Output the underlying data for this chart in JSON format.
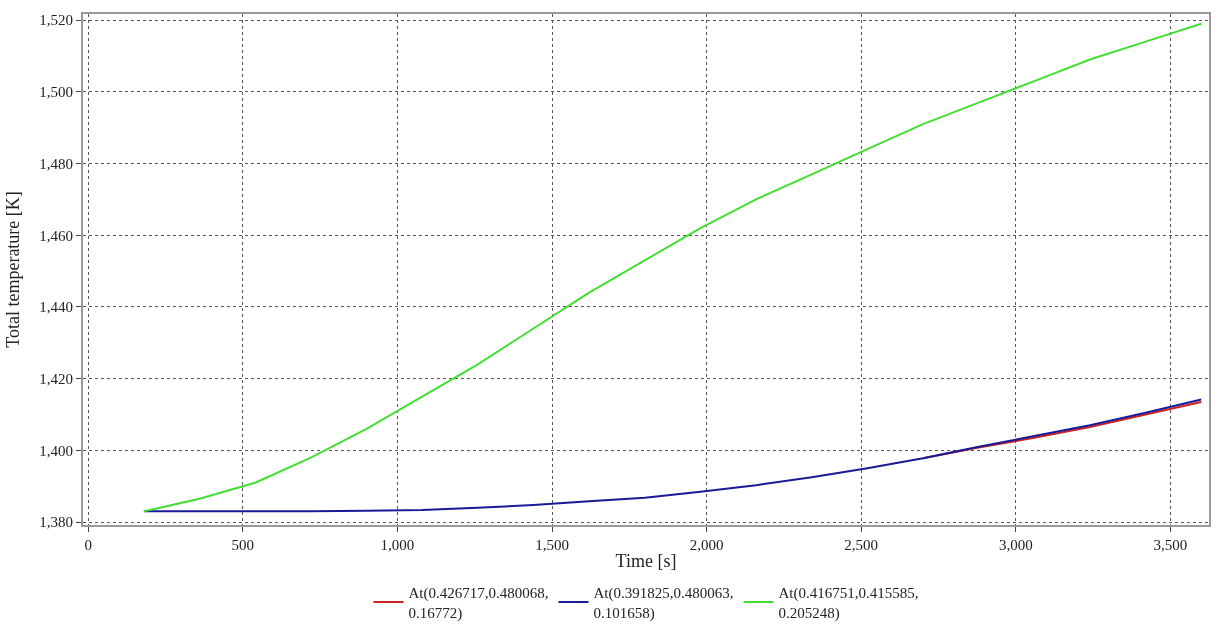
{
  "chart_data": {
    "type": "line",
    "xlabel": "Time [s]",
    "ylabel": "Total temperature [K]",
    "x": [
      180,
      360,
      540,
      720,
      900,
      1080,
      1260,
      1440,
      1620,
      1800,
      1980,
      2160,
      2340,
      2520,
      2700,
      2880,
      3060,
      3240,
      3420,
      3600
    ],
    "series": [
      {
        "name": "At(0.426717,0.480068, 0.16772)",
        "color": "#cc2222",
        "values": [
          null,
          null,
          null,
          null,
          null,
          null,
          null,
          null,
          null,
          null,
          null,
          null,
          null,
          null,
          1397.8,
          1400.8,
          1403.5,
          1406.5,
          1410,
          1413.5
        ]
      },
      {
        "name": "At(0.391825,0.480063, 0.101658)",
        "color": "#1a1a99",
        "values": [
          1383,
          1383,
          1383,
          1383,
          1383.2,
          1383.4,
          1384,
          1384.8,
          1385.8,
          1386.8,
          1388.5,
          1390.3,
          1392.5,
          1395,
          1397.8,
          1401,
          1404,
          1407,
          1410.5,
          1414.2
        ]
      },
      {
        "name": "At(0.416751,0.415585, 0.205248)",
        "color": "#44dd33",
        "values": [
          1383,
          1386.5,
          1391,
          1398,
          1406,
          1415,
          1424,
          1434,
          1444,
          1453,
          1462,
          1470,
          1477,
          1484,
          1491,
          1497,
          1503,
          1509,
          1514,
          1519
        ]
      }
    ],
    "xlim": [
      -17,
      3625
    ],
    "ylim": [
      1379.2,
      1521.7
    ],
    "xticks": [
      0,
      500,
      {
        "value": 1000,
        "label": "1,000"
      },
      {
        "value": 1500,
        "label": "1,500"
      },
      {
        "value": 2000,
        "label": "2,000"
      },
      {
        "value": 2500,
        "label": "2,500"
      },
      {
        "value": 3000,
        "label": "3,000"
      },
      {
        "value": 3500,
        "label": "3,500"
      }
    ],
    "yticks": [
      {
        "value": 1380,
        "label": "1,380"
      },
      {
        "value": 1400,
        "label": "1,400"
      },
      {
        "value": 1420,
        "label": "1,420"
      },
      {
        "value": 1440,
        "label": "1,440"
      },
      {
        "value": 1460,
        "label": "1,460"
      },
      {
        "value": 1480,
        "label": "1,480"
      },
      {
        "value": 1500,
        "label": "1,500"
      },
      {
        "value": 1520,
        "label": "1,520"
      }
    ],
    "grid": true,
    "legend": "bottom",
    "marker": "none",
    "line_style": "solid"
  }
}
